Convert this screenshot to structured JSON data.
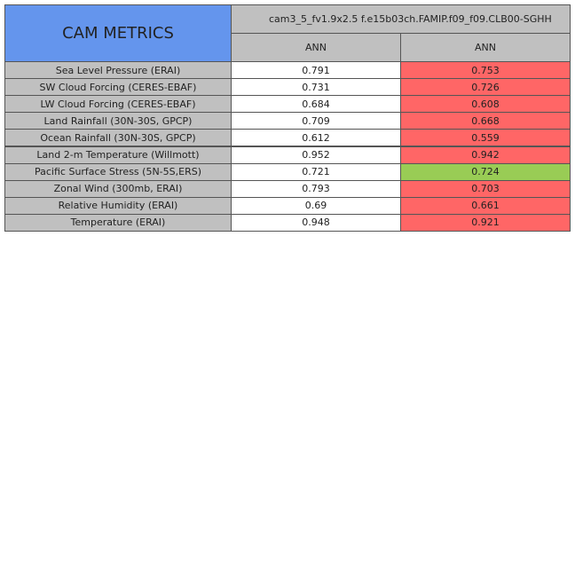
{
  "header": {
    "title": "CAM METRICS",
    "case": "cam3_5_fv1.9x2.5 f.e15b03ch.FAMIP.f09_f09.CLB00-SGHH",
    "columns": [
      "ANN",
      "ANN"
    ]
  },
  "table": {
    "rows": [
      [
        "Sea Level Pressure (ERAI)",
        0.791,
        0.753
      ],
      [
        "SW Cloud Forcing (CERES-EBAF)",
        0.731,
        0.726
      ],
      [
        "LW Cloud Forcing (CERES-EBAF)",
        0.684,
        0.608
      ],
      [
        "Land Rainfall (30N-30S, GPCP)",
        0.709,
        0.668
      ],
      [
        "Ocean Rainfall (30N-30S, GPCP)",
        0.612,
        0.559
      ],
      [
        "Land 2-m Temperature (Willmott)",
        0.952,
        0.942
      ],
      [
        "Pacific Surface Stress (5N-5S,ERS)",
        0.721,
        0.724
      ],
      [
        "Zonal Wind (300mb, ERAI)",
        0.793,
        0.703
      ],
      [
        "Relative Humidity (ERAI)",
        0.69,
        0.661
      ],
      [
        "Temperature (ERAI)",
        0.948,
        0.921
      ]
    ],
    "cell_colors": [
      "#ff6666",
      "#ff6666",
      "#ff6666",
      "#ff6666",
      "#ff6666",
      "#ff6666",
      "#99cc55",
      "#ff6666",
      "#ff6666",
      "#ff6666"
    ]
  }
}
